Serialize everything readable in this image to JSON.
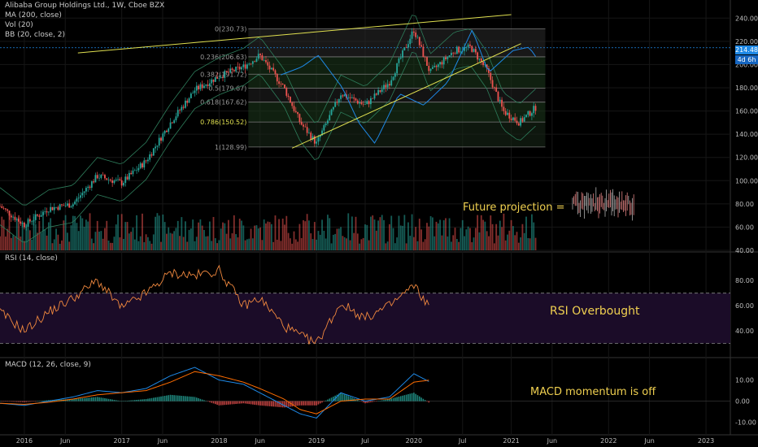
{
  "header": {
    "symbol": "Alibaba Group Holdings Ltd., 1W, Cboe BZX",
    "ma": "MA (200, close)",
    "vol": "Vol (20)",
    "bb": "BB (20, close, 2)",
    "rsi": "RSI (14, close)",
    "macd": "MACD (12, 26, close, 9)"
  },
  "price_box": {
    "price": "214.48",
    "countdown": "4d 6h",
    "color": "#1e88e5"
  },
  "annotations": {
    "future": "Future projection =",
    "rsi": "RSI Overbought",
    "macd": "MACD momentum is off"
  },
  "colors": {
    "up": "#26a69a",
    "down": "#ef5350",
    "trend": "#e0e050",
    "rsi": "#f0883e",
    "rsi_zone": "#1b0c28",
    "macd": "#1e88e5",
    "signal": "#ff6d00",
    "annot": "#f0d050"
  },
  "chart_data": [
    {
      "type": "line",
      "name": "Price",
      "title": "Alibaba Group Holdings Ltd., 1W, Cboe BZX",
      "x_ticks": [
        "2016",
        "Jun",
        "2017",
        "Jun",
        "2018",
        "Jun",
        "2019",
        "Jul",
        "2020",
        "Jul",
        "2021",
        "Jun",
        "2022",
        "Jun",
        "2023"
      ],
      "y_ticks": [
        40,
        60,
        80,
        100,
        120,
        140,
        160,
        180,
        200,
        220,
        240
      ],
      "ylim": [
        40,
        250
      ],
      "x": [
        "2015-10",
        "2016-01",
        "2016-04",
        "2016-07",
        "2016-10",
        "2017-01",
        "2017-04",
        "2017-07",
        "2017-10",
        "2018-01",
        "2018-04",
        "2018-06",
        "2018-09",
        "2018-11",
        "2019-01",
        "2019-04",
        "2019-07",
        "2019-10",
        "2020-01",
        "2020-03",
        "2020-06",
        "2020-08",
        "2020-10",
        "2020-12",
        "2021-02",
        "2021-04"
      ],
      "series": [
        {
          "values": [
            78,
            62,
            76,
            80,
            104,
            98,
            117,
            150,
            178,
            190,
            198,
            208,
            180,
            150,
            132,
            175,
            165,
            185,
            230,
            193,
            212,
            215,
            195,
            160,
            150,
            163
          ]
        }
      ],
      "fibonacci": [
        {
          "level": "0",
          "price": 230.73
        },
        {
          "level": "0.236",
          "price": 206.63
        },
        {
          "level": "0.382",
          "price": 191.72
        },
        {
          "level": "0.5",
          "price": 179.67
        },
        {
          "level": "0.618",
          "price": 167.62
        },
        {
          "level": "0.786",
          "price": 150.52
        },
        {
          "level": "1",
          "price": 128.99
        }
      ],
      "current_price": 214.48,
      "grid": true
    },
    {
      "type": "line",
      "name": "RSI (14, close)",
      "y_ticks": [
        40,
        60,
        80
      ],
      "ylim": [
        20,
        95
      ],
      "bands": [
        70,
        30
      ],
      "x": [
        "2015-10",
        "2016-01",
        "2016-04",
        "2016-07",
        "2016-10",
        "2017-01",
        "2017-04",
        "2017-07",
        "2017-10",
        "2018-01",
        "2018-04",
        "2018-06",
        "2018-09",
        "2018-11",
        "2019-01",
        "2019-04",
        "2019-07",
        "2019-10",
        "2020-01",
        "2020-03"
      ],
      "series": [
        {
          "values": [
            55,
            40,
            55,
            66,
            80,
            58,
            70,
            86,
            84,
            88,
            60,
            66,
            44,
            36,
            30,
            62,
            50,
            60,
            76,
            58
          ]
        }
      ]
    },
    {
      "type": "line",
      "name": "MACD (12, 26, close, 9)",
      "y_ticks": [
        10,
        0,
        -10
      ],
      "ylim": [
        -14,
        16
      ],
      "x": [
        "2015-10",
        "2016-01",
        "2016-04",
        "2016-07",
        "2016-10",
        "2017-01",
        "2017-04",
        "2017-07",
        "2017-10",
        "2018-01",
        "2018-04",
        "2018-06",
        "2018-09",
        "2018-11",
        "2019-01",
        "2019-04",
        "2019-07",
        "2019-10",
        "2020-01",
        "2020-03"
      ],
      "series": [
        {
          "values": [
            -1,
            -2,
            0,
            2,
            5,
            4,
            6,
            12,
            16,
            10,
            8,
            4,
            -2,
            -6,
            -8,
            4,
            0,
            2,
            13,
            9
          ]
        },
        {
          "values": [
            -1,
            -1.5,
            -0.5,
            1,
            3,
            4,
            5,
            9,
            14,
            12,
            9,
            6,
            1,
            -4,
            -6,
            0,
            1,
            1,
            9,
            10
          ]
        }
      ]
    }
  ]
}
